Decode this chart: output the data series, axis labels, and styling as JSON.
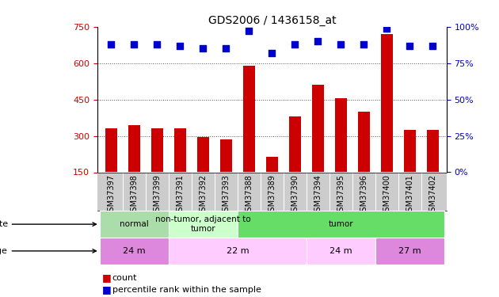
{
  "title": "GDS2006 / 1436158_at",
  "samples": [
    "GSM37397",
    "GSM37398",
    "GSM37399",
    "GSM37391",
    "GSM37392",
    "GSM37393",
    "GSM37388",
    "GSM37389",
    "GSM37390",
    "GSM37394",
    "GSM37395",
    "GSM37396",
    "GSM37400",
    "GSM37401",
    "GSM37402"
  ],
  "counts": [
    330,
    345,
    330,
    330,
    295,
    285,
    590,
    215,
    380,
    510,
    455,
    400,
    720,
    325,
    325
  ],
  "percentiles": [
    88,
    88,
    88,
    87,
    85,
    85,
    97,
    82,
    88,
    90,
    88,
    88,
    99,
    87,
    87
  ],
  "ylim_left": [
    150,
    750
  ],
  "ylim_right": [
    0,
    100
  ],
  "yticks_left": [
    150,
    300,
    450,
    600,
    750
  ],
  "yticks_right": [
    0,
    25,
    50,
    75,
    100
  ],
  "bar_color": "#cc0000",
  "dot_color": "#0000cc",
  "grid_color": "#555555",
  "disease_state_groups": [
    {
      "label": "normal",
      "start": 0,
      "end": 3,
      "color": "#aaddaa"
    },
    {
      "label": "non-tumor, adjacent to\ntumor",
      "start": 3,
      "end": 6,
      "color": "#ccffcc"
    },
    {
      "label": "tumor",
      "start": 6,
      "end": 15,
      "color": "#66dd66"
    }
  ],
  "age_groups": [
    {
      "label": "24 m",
      "start": 0,
      "end": 3,
      "color": "#dd88dd"
    },
    {
      "label": "22 m",
      "start": 3,
      "end": 9,
      "color": "#ffccff"
    },
    {
      "label": "24 m",
      "start": 9,
      "end": 12,
      "color": "#ffccff"
    },
    {
      "label": "27 m",
      "start": 12,
      "end": 15,
      "color": "#dd88dd"
    }
  ],
  "bar_width": 0.5,
  "dot_size": 35,
  "tick_label_color_left": "#cc0000",
  "tick_label_color_right": "#0000cc",
  "background_color": "#ffffff",
  "plot_bg_color": "#ffffff",
  "sample_band_color": "#cccccc",
  "label_fontsize": 8,
  "tick_fontsize": 8,
  "sample_fontsize": 7
}
